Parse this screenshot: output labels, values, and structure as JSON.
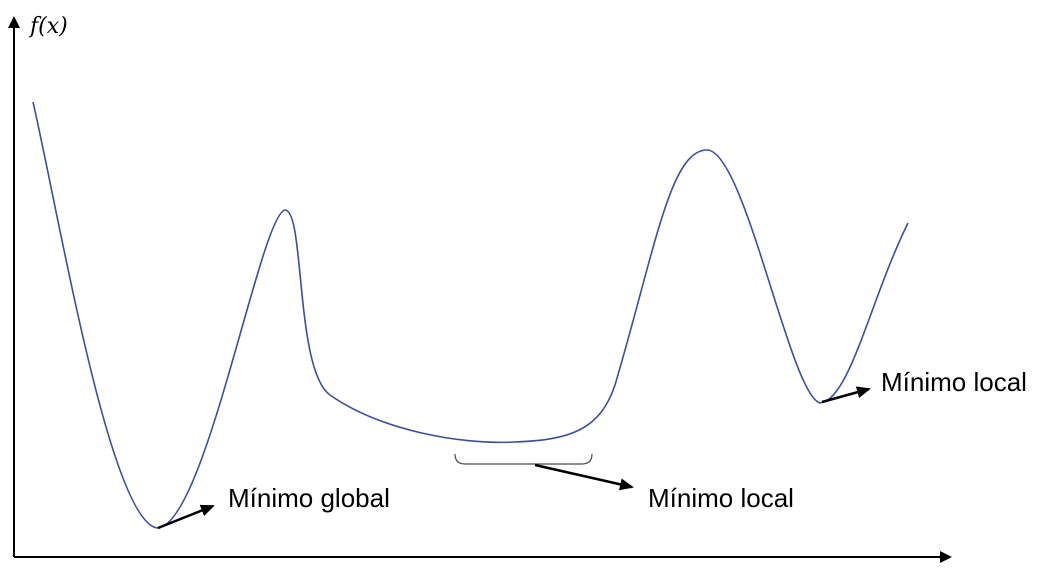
{
  "diagram": {
    "y_axis_label": "f(x)",
    "annotations": {
      "global_min": "Mínimo global",
      "local_min_mid": "Mínimo local",
      "local_min_right": "Mínimo local"
    },
    "colors": {
      "curve": "#3b4f9a",
      "axes": "#000000",
      "bracket": "#4a4a4a",
      "arrows": "#000000"
    }
  }
}
